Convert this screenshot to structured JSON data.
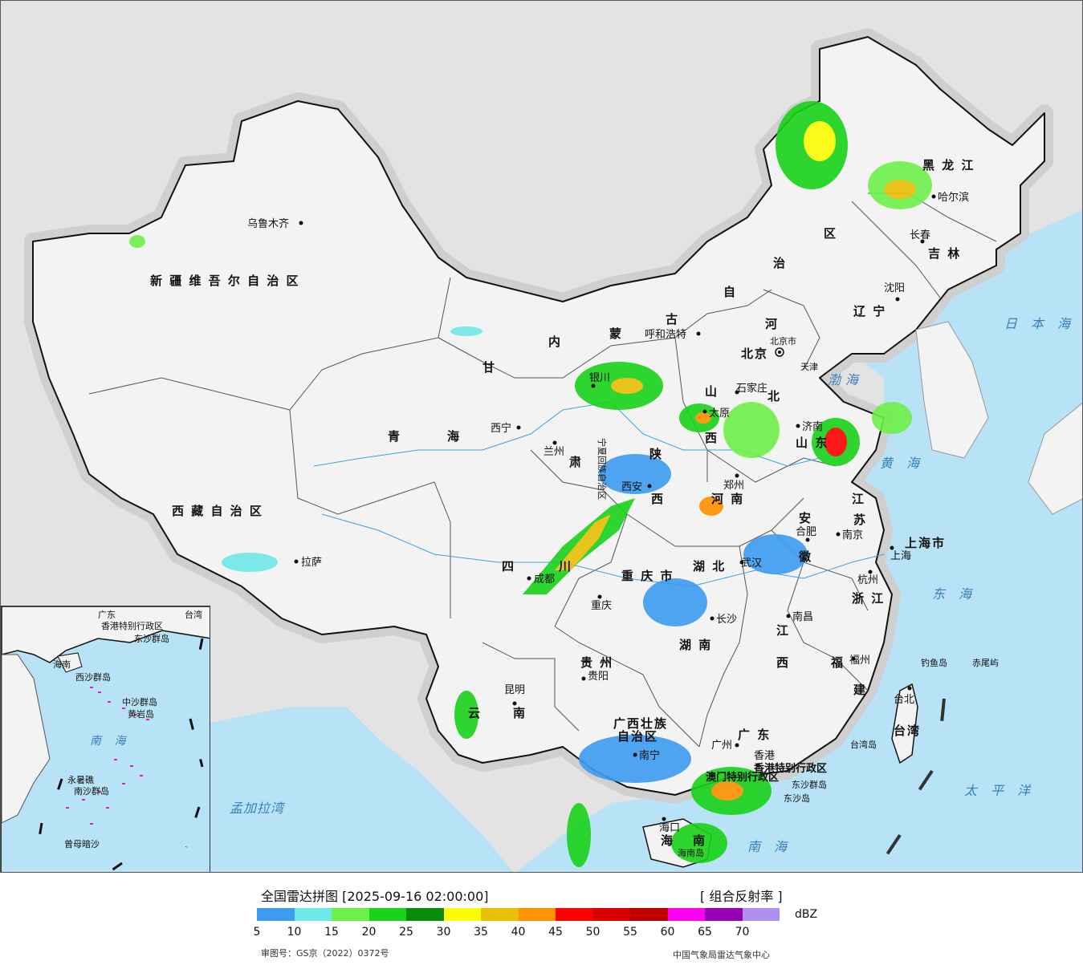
{
  "provinces": {
    "xinjiang": "新 疆 维 吾 尔 自 治 区",
    "xizang": "西 藏 自 治 区",
    "qinghai_a": "青",
    "qinghai_b": "海",
    "gansu_a": "甘",
    "gansu_b": "肃",
    "neimenggu_a": "内",
    "neimenggu_b": "蒙",
    "neimenggu_c": "古",
    "neimenggu_d": "自",
    "neimenggu_e": "治",
    "neimenggu_f": "区",
    "heilongjiang": "黑 龙 江",
    "jilin": "吉 林",
    "liaoning": "辽 宁",
    "hebei_a": "河",
    "hebei_b": "北",
    "shanxi_a": "山",
    "shanxi_b": "西",
    "shandong": "山 东",
    "henan": "河 南",
    "shaanxi_a": "陕",
    "shaanxi_b": "西",
    "sichuan_a": "四",
    "sichuan_b": "川",
    "chongqing": "重 庆 市",
    "hubei": "湖 北",
    "anhui_a": "安",
    "anhui_b": "徽",
    "jiangsu_a": "江",
    "jiangsu_b": "苏",
    "shanghai": "上海市",
    "zhejiang": "浙 江",
    "jiangxi_a": "江",
    "jiangxi_b": "西",
    "hunan": "湖 南",
    "guizhou": "贵 州",
    "yunnan_a": "云",
    "yunnan_b": "南",
    "guangxi": "广西壮族",
    "guangxi_b": "自治区",
    "guangdong": "广 东",
    "fujian_a": "福",
    "fujian_b": "建",
    "taiwan": "台湾",
    "hainan_a": "海",
    "hainan_b": "南",
    "ningxia": "宁夏回族自治区",
    "hk": "香港特别行政区",
    "macau": "澳门特别行政区",
    "beijing_city": "北京市",
    "tianjin": "天津"
  },
  "cities": {
    "urumqi": "乌鲁木齐",
    "lhasa": "拉萨",
    "xining": "西宁",
    "lanzhou": "兰州",
    "yinchuan": "银川",
    "hohhot": "呼和浩特",
    "beijing": "北京",
    "shijiazhuang": "石家庄",
    "jinan": "济南",
    "taiyuan": "太原",
    "zhengzhou": "郑州",
    "xian": "西安",
    "chengdu": "成都",
    "chongqing": "重庆",
    "wuhan": "武汉",
    "hefei": "合肥",
    "nanjing": "南京",
    "shanghai": "上海",
    "hangzhou": "杭州",
    "nanchang": "南昌",
    "changsha": "长沙",
    "guiyang": "贵阳",
    "kunming": "昆明",
    "nanning": "南宁",
    "guangzhou": "广州",
    "hongkong": "香港",
    "fuzhou": "福州",
    "taibei": "台北",
    "haikou": "海口",
    "shenyang": "沈阳",
    "changchun": "长春",
    "harbin": "哈尔滨"
  },
  "seas": {
    "bohai": "渤海",
    "huanghai": "黄 海",
    "donghai": "东 海",
    "nanhai": "南 海",
    "riben": "日 本 海",
    "taipingyang": "太 平 洋",
    "mengjiala": "孟加拉湾"
  },
  "islands": {
    "diaoyu": "钓鱼岛",
    "chiwei": "赤尾屿",
    "dongsha": "东沙群岛",
    "dongsha_island": "东沙岛",
    "taiwan_island": "台湾岛",
    "hainan_island": "海南岛"
  },
  "inset": {
    "sea": "南 海",
    "xisha": "西沙群岛",
    "zhongsha": "中沙群岛",
    "huangyan": "黄岩岛",
    "nansha": "南沙群岛",
    "zengmu": "曾母暗沙",
    "yongshu": "永暑礁",
    "hk": "香港特别行政区",
    "guangdong": "广东",
    "taiwan": "台湾",
    "dongsha": "东沙群岛",
    "hainan": "海南"
  },
  "legend": {
    "title": "全国雷达拼图 [2025-09-16 02:00:00]",
    "product": "[ 组合反射率 ]",
    "unit": "dBZ",
    "ticks": [
      "5",
      "10",
      "15",
      "20",
      "25",
      "30",
      "35",
      "40",
      "45",
      "50",
      "55",
      "60",
      "65",
      "70"
    ],
    "colors": [
      "#3d9cf0",
      "#6ee8e8",
      "#6ef04a",
      "#19d219",
      "#088b08",
      "#fcfc05",
      "#e8c005",
      "#ff9200",
      "#ff0000",
      "#d60000",
      "#c00000",
      "#ff00f0",
      "#9600b4",
      "#ad90f0"
    ],
    "review_no": "审图号：GS京（2022）0372号",
    "org": "中国气象局雷达气象中心"
  }
}
